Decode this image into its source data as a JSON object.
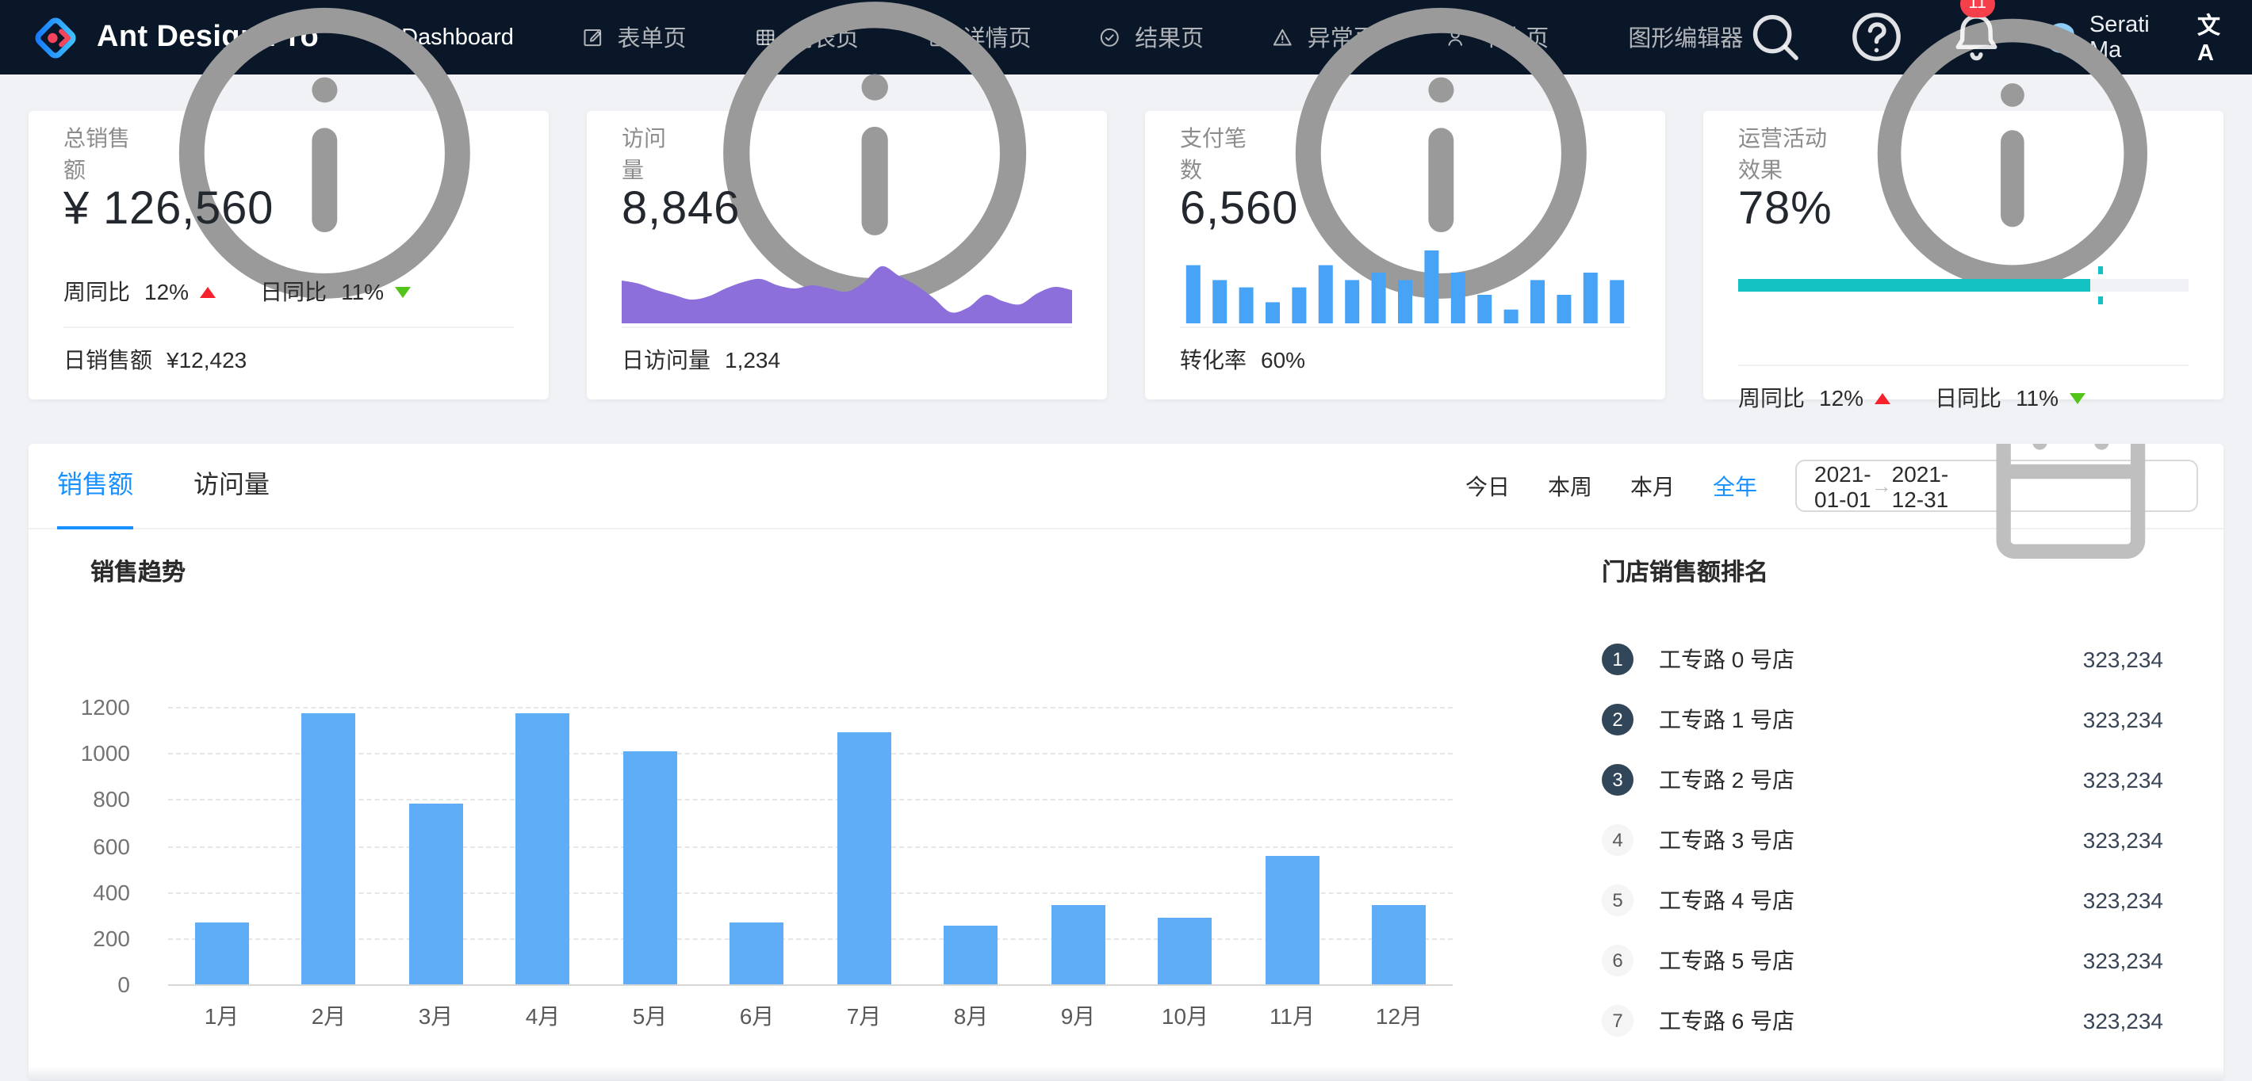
{
  "header": {
    "brand": "Ant Design Pro",
    "menu": [
      {
        "label": "Dashboard",
        "icon": "dashboard-icon",
        "active": true
      },
      {
        "label": "表单页",
        "icon": "form-icon",
        "active": false
      },
      {
        "label": "列表页",
        "icon": "table-icon",
        "active": false
      },
      {
        "label": "详情页",
        "icon": "profile-icon",
        "active": false
      },
      {
        "label": "结果页",
        "icon": "check-circle-icon",
        "active": false
      },
      {
        "label": "异常页",
        "icon": "warning-icon",
        "active": false
      },
      {
        "label": "个人页",
        "icon": "user-icon",
        "active": false
      },
      {
        "label": "图形编辑器",
        "icon": "highlight-icon",
        "active": false
      }
    ],
    "bell_badge": "11",
    "user_name": "Serati Ma",
    "translate_label": "文A"
  },
  "cards": [
    {
      "title": "总销售额",
      "value": "¥ 126,560",
      "trends": [
        {
          "label": "周同比",
          "value": "12%",
          "direction": "up"
        },
        {
          "label": "日同比",
          "value": "11%",
          "direction": "down"
        }
      ],
      "footer_label": "日销售额",
      "footer_value": "¥12,423"
    },
    {
      "title": "访问量",
      "value": "8,846",
      "footer_label": "日访问量",
      "footer_value": "1,234"
    },
    {
      "title": "支付笔数",
      "value": "6,560",
      "footer_label": "转化率",
      "footer_value": "60%"
    },
    {
      "title": "运营活动效果",
      "value": "78%",
      "trends": [
        {
          "label": "周同比",
          "value": "12%",
          "direction": "up"
        },
        {
          "label": "日同比",
          "value": "11%",
          "direction": "down"
        }
      ]
    }
  ],
  "panel": {
    "tabs": [
      {
        "label": "销售额",
        "active": true
      },
      {
        "label": "访问量",
        "active": false
      }
    ],
    "presets": [
      {
        "label": "今日",
        "active": false
      },
      {
        "label": "本周",
        "active": false
      },
      {
        "label": "本月",
        "active": false
      },
      {
        "label": "全年",
        "active": true
      }
    ],
    "date_range": {
      "start": "2021-01-01",
      "separator": "→",
      "end": "2021-12-31"
    },
    "chart_title": "销售趋势",
    "ranking_title": "门店销售额排名",
    "ranking": [
      {
        "rank": 1,
        "name": "工专路 0 号店",
        "value": "323,234"
      },
      {
        "rank": 2,
        "name": "工专路 1 号店",
        "value": "323,234"
      },
      {
        "rank": 3,
        "name": "工专路 2 号店",
        "value": "323,234"
      },
      {
        "rank": 4,
        "name": "工专路 3 号店",
        "value": "323,234"
      },
      {
        "rank": 5,
        "name": "工专路 4 号店",
        "value": "323,234"
      },
      {
        "rank": 6,
        "name": "工专路 5 号店",
        "value": "323,234"
      },
      {
        "rank": 7,
        "name": "工专路 6 号店",
        "value": "323,234"
      }
    ]
  },
  "colors": {
    "accent_blue": "#1890ff",
    "header_bg": "#0a1728",
    "bar_blue": "#5facf7",
    "mini_bar_blue": "#47a3f6",
    "area_purple": "#8d6fdc",
    "progress_teal": "#13c2c2",
    "up_red": "#f5222d",
    "down_green": "#52c41a",
    "badge_red": "#f5404c",
    "rank_badge_dark": "#314659",
    "page_bg": "#f0f2f5"
  },
  "chart_data": [
    {
      "id": "sales-trend",
      "type": "bar",
      "title": "销售趋势",
      "categories": [
        "1月",
        "2月",
        "3月",
        "4月",
        "5月",
        "6月",
        "7月",
        "8月",
        "9月",
        "10月",
        "11月",
        "12月"
      ],
      "values": [
        265,
        1175,
        780,
        1170,
        1010,
        270,
        1090,
        255,
        340,
        285,
        555,
        340
      ],
      "xlabel": "",
      "ylabel": "",
      "ylim": [
        0,
        1200
      ],
      "yticks": [
        0,
        200,
        400,
        600,
        800,
        1000,
        1200
      ],
      "grid": "horizontal-dashed",
      "legend": "none",
      "bar_color": "#5facf7"
    },
    {
      "id": "visits-sparkline",
      "type": "area",
      "values": [
        27,
        25,
        21,
        18,
        15,
        17,
        22,
        26,
        28,
        24,
        22,
        24,
        22,
        20,
        26,
        36,
        30,
        24,
        16,
        7,
        10,
        18,
        14,
        12,
        19,
        23,
        21
      ],
      "ymax": 48,
      "color": "#8d6fdc"
    },
    {
      "id": "payments-sparkline",
      "type": "bar",
      "values": [
        7,
        5,
        4,
        2,
        4,
        7,
        5,
        6,
        5,
        9,
        6,
        3,
        1,
        5,
        3,
        6,
        5
      ],
      "ymax": 9,
      "color": "#47a3f6"
    },
    {
      "id": "activity-progress",
      "type": "progress",
      "percent": 78,
      "target": 80,
      "color": "#13c2c2"
    }
  ]
}
